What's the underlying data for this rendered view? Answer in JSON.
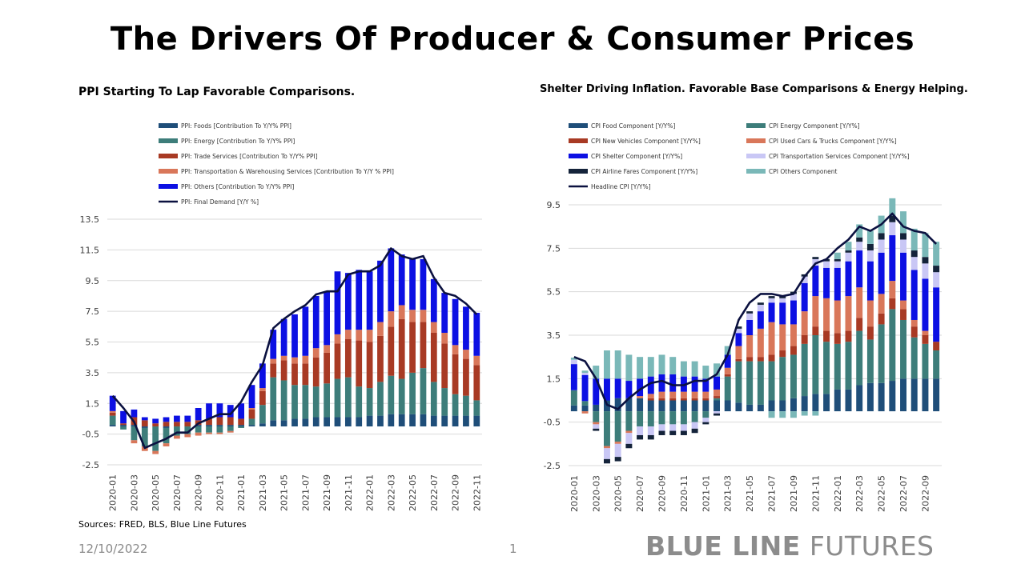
{
  "title": "The Drivers Of Producer & Consumer Prices",
  "footer": {
    "sources": "Sources: FRED, BLS, Blue Line Futures",
    "date": "12/10/2022",
    "page": "1",
    "logo_bold": "BLUE LINE",
    "logo_light": "FUTURES"
  },
  "chart_data": [
    {
      "type": "bar",
      "title": "PPI Starting To Lap Favorable Comparisons.",
      "stacked": true,
      "ylim": [
        -2.5,
        13.5
      ],
      "yticks": [
        "13.5",
        "11.5",
        "9.5",
        "7.5",
        "5.5",
        "3.5",
        "1.5",
        "-0.5",
        "-2.5"
      ],
      "grid": true,
      "legend_position": "top",
      "categories": [
        "2020-01",
        "2020-02",
        "2020-03",
        "2020-04",
        "2020-05",
        "2020-06",
        "2020-07",
        "2020-08",
        "2020-09",
        "2020-10",
        "2020-11",
        "2020-12",
        "2021-01",
        "2021-02",
        "2021-03",
        "2021-04",
        "2021-05",
        "2021-06",
        "2021-07",
        "2021-08",
        "2021-09",
        "2021-10",
        "2021-11",
        "2021-12",
        "2022-01",
        "2022-02",
        "2022-03",
        "2022-04",
        "2022-05",
        "2022-06",
        "2022-07",
        "2022-08",
        "2022-09",
        "2022-10",
        "2022-11"
      ],
      "xtick_labels": [
        "2020-01",
        "2020-03",
        "2020-05",
        "2020-07",
        "2020-09",
        "2020-11",
        "2021-01",
        "2021-03",
        "2021-05",
        "2021-07",
        "2021-09",
        "2021-11",
        "2022-01",
        "2022-03",
        "2022-05",
        "2022-07",
        "2022-09",
        "2022-11"
      ],
      "series": [
        {
          "name": "PPI: Foods [Contribution To Y/Y% PPI]",
          "color": "#1f4e79",
          "kind": "bar",
          "values": [
            0.1,
            0.1,
            0.1,
            -0.1,
            0.0,
            -0.1,
            0.0,
            0.0,
            0.1,
            0.1,
            0.1,
            0.1,
            0.1,
            0.1,
            0.2,
            0.4,
            0.4,
            0.5,
            0.5,
            0.6,
            0.6,
            0.6,
            0.6,
            0.6,
            0.7,
            0.7,
            0.8,
            0.8,
            0.8,
            0.8,
            0.7,
            0.7,
            0.7,
            0.7,
            0.7
          ]
        },
        {
          "name": "PPI: Energy [Contribution To Y/Y% PPI]",
          "color": "#3d7d7a",
          "kind": "bar",
          "values": [
            0.6,
            -0.2,
            -0.9,
            -1.2,
            -1.6,
            -1.0,
            -0.6,
            -0.5,
            -0.4,
            -0.4,
            -0.4,
            -0.3,
            -0.1,
            0.4,
            1.2,
            2.8,
            2.6,
            2.2,
            2.2,
            2.0,
            2.2,
            2.5,
            2.6,
            2.0,
            1.8,
            2.2,
            2.5,
            2.3,
            2.7,
            3.0,
            2.2,
            1.8,
            1.4,
            1.3,
            1.0
          ]
        },
        {
          "name": "PPI: Trade Services [Contribution To Y/Y% PPI]",
          "color": "#a83a24",
          "kind": "bar",
          "values": [
            0.2,
            0.1,
            0.5,
            0.4,
            0.2,
            0.3,
            0.3,
            0.3,
            0.3,
            0.4,
            0.5,
            0.5,
            0.4,
            0.6,
            0.9,
            0.9,
            1.3,
            1.4,
            1.4,
            1.9,
            2.0,
            2.3,
            2.5,
            3.0,
            3.0,
            3.0,
            3.2,
            3.9,
            3.3,
            3.0,
            3.2,
            2.9,
            2.6,
            2.4,
            2.3
          ]
        },
        {
          "name": "PPI: Transportation & Warehousing Services [Contribution To Y/Y % PPI]",
          "color": "#d9775a",
          "kind": "bar",
          "values": [
            0.1,
            0.0,
            -0.2,
            -0.3,
            -0.2,
            -0.2,
            -0.2,
            -0.2,
            -0.2,
            -0.1,
            -0.1,
            -0.1,
            0.0,
            0.1,
            0.2,
            0.3,
            0.3,
            0.4,
            0.5,
            0.6,
            0.5,
            0.6,
            0.6,
            0.7,
            0.8,
            0.9,
            1.0,
            0.9,
            0.8,
            0.8,
            0.7,
            0.7,
            0.6,
            0.6,
            0.6
          ]
        },
        {
          "name": "PPI: Others [Contribution To Y/Y% PPI]",
          "color": "#0c10e3",
          "kind": "bar",
          "values": [
            1.0,
            0.8,
            0.5,
            0.2,
            0.3,
            0.3,
            0.4,
            0.4,
            0.8,
            1.0,
            0.9,
            0.8,
            1.0,
            1.5,
            1.6,
            1.9,
            2.4,
            2.8,
            3.2,
            3.4,
            3.5,
            4.1,
            3.7,
            3.9,
            3.8,
            4.0,
            4.1,
            3.3,
            3.3,
            3.3,
            2.8,
            2.6,
            3.0,
            2.8,
            2.8
          ]
        },
        {
          "name": "PPI: Final Demand [Y/Y %]",
          "color": "#0b1140",
          "kind": "line",
          "values": [
            2.0,
            1.2,
            0.3,
            -1.4,
            -1.1,
            -0.8,
            -0.4,
            -0.4,
            0.2,
            0.5,
            0.8,
            0.8,
            1.6,
            2.9,
            4.0,
            6.4,
            7.0,
            7.5,
            7.9,
            8.6,
            8.8,
            8.8,
            9.9,
            10.1,
            10.1,
            10.5,
            11.6,
            11.1,
            10.9,
            11.1,
            9.7,
            8.7,
            8.5,
            8.0,
            7.3
          ]
        }
      ]
    },
    {
      "type": "bar",
      "title": "Shelter Driving Inflation. Favorable Base Comparisons & Energy Helping.",
      "stacked": true,
      "ylim": [
        -2.5,
        9.5
      ],
      "yticks": [
        "9.5",
        "7.5",
        "5.5",
        "3.5",
        "1.5",
        "-0.5",
        "-2.5"
      ],
      "grid": true,
      "legend_position": "top",
      "categories": [
        "2020-01",
        "2020-02",
        "2020-03",
        "2020-04",
        "2020-05",
        "2020-06",
        "2020-07",
        "2020-08",
        "2020-09",
        "2020-10",
        "2020-11",
        "2020-12",
        "2021-01",
        "2021-02",
        "2021-03",
        "2021-04",
        "2021-05",
        "2021-06",
        "2021-07",
        "2021-08",
        "2021-09",
        "2021-10",
        "2021-11",
        "2021-12",
        "2022-01",
        "2022-02",
        "2022-03",
        "2022-04",
        "2022-05",
        "2022-06",
        "2022-07",
        "2022-08",
        "2022-09",
        "2022-10"
      ],
      "xtick_labels": [
        "2020-01",
        "2020-03",
        "2020-05",
        "2020-07",
        "2020-09",
        "2020-11",
        "2021-01",
        "2021-03",
        "2021-05",
        "2021-07",
        "2021-09",
        "2021-11",
        "2022-01",
        "2022-03",
        "2022-05",
        "2022-07",
        "2022-09"
      ],
      "series": [
        {
          "name": "CPI Food Component [Y/Y%]",
          "color": "#1f4e79",
          "kind": "bar",
          "values": [
            0.27,
            0.27,
            0.3,
            0.5,
            0.6,
            0.6,
            0.6,
            0.5,
            0.5,
            0.5,
            0.5,
            0.5,
            0.5,
            0.5,
            0.5,
            0.4,
            0.3,
            0.3,
            0.5,
            0.5,
            0.6,
            0.7,
            0.8,
            0.8,
            1.0,
            1.0,
            1.2,
            1.3,
            1.3,
            1.4,
            1.5,
            1.5,
            1.5,
            1.5
          ]
        },
        {
          "name": "CPI Energy Component [Y/Y%]",
          "color": "#3d7d7a",
          "kind": "bar",
          "values": [
            0.7,
            0.2,
            -0.5,
            -1.6,
            -1.4,
            -0.9,
            -0.7,
            -0.7,
            -0.6,
            -0.6,
            -0.6,
            -0.5,
            -0.3,
            0.1,
            1.1,
            1.9,
            2.0,
            2.0,
            1.8,
            2.0,
            2.0,
            2.4,
            2.7,
            2.4,
            2.1,
            2.2,
            2.5,
            2.0,
            2.7,
            3.3,
            2.7,
            1.9,
            1.6,
            1.3
          ]
        },
        {
          "name": "CPI New Vehicles Component [Y/Y%]",
          "color": "#a83a24",
          "kind": "bar",
          "values": [
            0.0,
            0.0,
            0.0,
            0.0,
            0.0,
            0.0,
            0.0,
            0.1,
            0.1,
            0.1,
            0.1,
            0.1,
            0.1,
            0.1,
            0.1,
            0.1,
            0.2,
            0.2,
            0.3,
            0.3,
            0.4,
            0.4,
            0.4,
            0.5,
            0.5,
            0.5,
            0.6,
            0.6,
            0.5,
            0.5,
            0.5,
            0.5,
            0.4,
            0.4
          ]
        },
        {
          "name": "CPI Used Cars & Trucks Component [Y/Y%]",
          "color": "#d9775a",
          "kind": "bar",
          "values": [
            0.0,
            -0.1,
            -0.1,
            -0.1,
            -0.1,
            -0.1,
            0.1,
            0.2,
            0.3,
            0.3,
            0.3,
            0.3,
            0.3,
            0.3,
            0.3,
            0.6,
            1.0,
            1.3,
            1.5,
            1.2,
            1.0,
            1.1,
            1.4,
            1.5,
            1.5,
            1.6,
            1.4,
            1.2,
            0.9,
            0.8,
            0.4,
            0.3,
            0.2,
            0.0
          ]
        },
        {
          "name": "CPI Shelter Component [Y/Y%]",
          "color": "#0c10e3",
          "kind": "bar",
          "values": [
            1.2,
            1.2,
            1.2,
            1.0,
            0.9,
            0.8,
            0.8,
            0.8,
            0.8,
            0.8,
            0.7,
            0.7,
            0.6,
            0.6,
            0.6,
            0.6,
            0.7,
            0.8,
            0.9,
            1.0,
            1.1,
            1.3,
            1.4,
            1.4,
            1.5,
            1.6,
            1.7,
            1.8,
            1.9,
            2.1,
            2.2,
            2.3,
            2.4,
            2.5
          ]
        },
        {
          "name": "CPI Transportation Services Component [Y/Y%]",
          "color": "#c9c7f5",
          "kind": "bar",
          "values": [
            0.2,
            0.1,
            -0.2,
            -0.5,
            -0.6,
            -0.5,
            -0.4,
            -0.4,
            -0.3,
            -0.3,
            -0.3,
            -0.3,
            -0.2,
            -0.1,
            0.0,
            0.2,
            0.3,
            0.3,
            0.2,
            0.2,
            0.3,
            0.3,
            0.3,
            0.3,
            0.3,
            0.4,
            0.4,
            0.5,
            0.6,
            0.6,
            0.6,
            0.6,
            0.7,
            0.7
          ]
        },
        {
          "name": "CPI Airline Fares Component [Y/Y%]",
          "color": "#14233a",
          "kind": "bar",
          "values": [
            0.0,
            0.0,
            -0.1,
            -0.2,
            -0.2,
            -0.2,
            -0.2,
            -0.2,
            -0.2,
            -0.2,
            -0.2,
            -0.2,
            -0.1,
            -0.1,
            0.0,
            0.1,
            0.1,
            0.1,
            0.1,
            0.1,
            0.1,
            0.1,
            0.1,
            0.1,
            0.1,
            0.1,
            0.2,
            0.3,
            0.3,
            0.3,
            0.3,
            0.3,
            0.3,
            0.3
          ]
        },
        {
          "name": "CPI Others Component",
          "color": "#7ab8b8",
          "kind": "bar",
          "values": [
            0.1,
            0.1,
            0.6,
            1.3,
            1.3,
            1.2,
            1.0,
            0.9,
            0.9,
            0.8,
            0.7,
            0.7,
            0.6,
            0.6,
            0.4,
            0.0,
            0.0,
            0.0,
            -0.3,
            -0.3,
            -0.3,
            -0.2,
            -0.2,
            0.0,
            0.3,
            0.4,
            0.6,
            0.6,
            0.8,
            0.8,
            1.0,
            1.0,
            1.1,
            1.1
          ]
        },
        {
          "name": "Headline CPI [Y/Y%]",
          "color": "#0b1140",
          "kind": "line",
          "values": [
            2.5,
            2.3,
            1.5,
            0.3,
            0.1,
            0.6,
            1.0,
            1.3,
            1.4,
            1.2,
            1.2,
            1.4,
            1.4,
            1.7,
            2.6,
            4.2,
            5.0,
            5.4,
            5.4,
            5.3,
            5.4,
            6.2,
            6.8,
            7.0,
            7.5,
            7.9,
            8.5,
            8.3,
            8.6,
            9.1,
            8.5,
            8.3,
            8.2,
            7.7
          ]
        }
      ]
    }
  ]
}
